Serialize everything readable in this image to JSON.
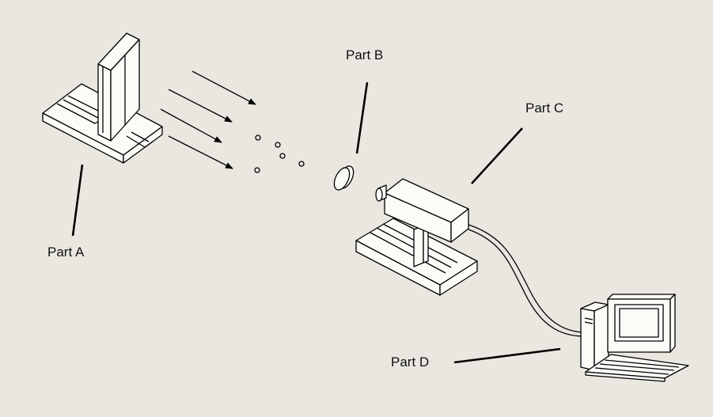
{
  "labels": {
    "part_a": "Part A",
    "part_b": "Part B",
    "part_c": "Part C",
    "part_d": "Part D"
  },
  "colors": {
    "background": "#e9e7df",
    "stroke": "#000000",
    "surface": "#fbfbf8"
  }
}
